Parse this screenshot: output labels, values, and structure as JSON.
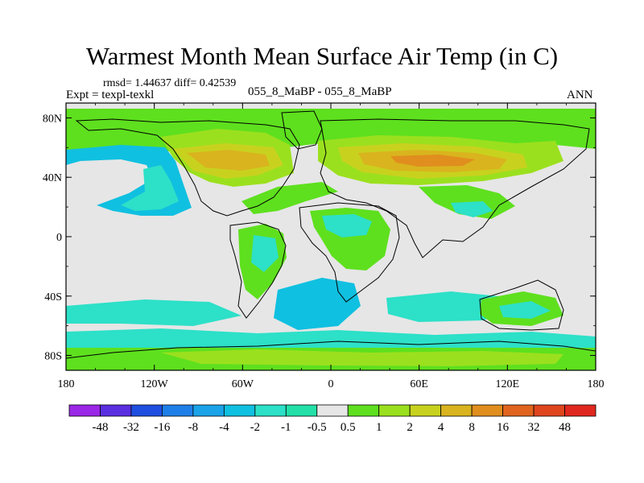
{
  "title": "Warmest Month Mean Surface Air Temp (in C)",
  "stats": "rmsd= 1.44637 diff= 0.42539",
  "experiment": "Expt = texpl-texkl",
  "comparison": "055_8_MaBP - 055_8_MaBP",
  "period": "ANN",
  "axes": {
    "x_ticks": [
      "180",
      "120W",
      "60W",
      "0",
      "60E",
      "120E",
      "180"
    ],
    "y_ticks": [
      "80N",
      "40N",
      "0",
      "40S",
      "80S"
    ]
  },
  "colorbar": {
    "labels": [
      "-48",
      "-32",
      "-16",
      "-8",
      "-4",
      "-2",
      "-1",
      "-0.5",
      "0.5",
      "1",
      "2",
      "4",
      "8",
      "16",
      "32",
      "48"
    ],
    "colors": [
      "#9b28e6",
      "#5a2fe0",
      "#1e4fe0",
      "#1f7fe8",
      "#1aa3e8",
      "#10c0e0",
      "#2de0c8",
      "#23e0a8",
      "#e6e6e6",
      "#5ee01e",
      "#9be01e",
      "#c8d21e",
      "#d9b41e",
      "#e08e1e",
      "#e0641e",
      "#e0461e",
      "#e0281e"
    ]
  },
  "map_colors": {
    "background": "#e6e6e6",
    "green": "#5ee01e",
    "lightgreen": "#9be01e",
    "olive": "#c8d21e",
    "gold": "#d9b41e",
    "orange": "#e08e1e",
    "teal": "#2de0c8",
    "cyan": "#10c0e0"
  }
}
